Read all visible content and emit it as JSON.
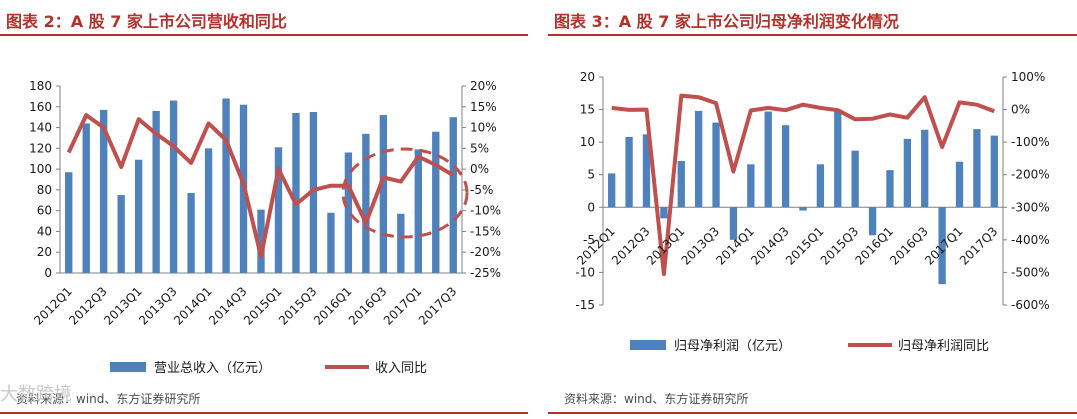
{
  "colors": {
    "bar": "#4f81bd",
    "line": "#c0504d",
    "title": "#b5312b",
    "highlight": "#c0504d"
  },
  "watermark": "大数跨境",
  "chart_data": [
    {
      "type": "bar",
      "title": "图表 2：A 股 7 家上市公司营收和同比",
      "categories": [
        "2012Q1",
        "2012Q2",
        "2012Q3",
        "2012Q4",
        "2013Q1",
        "2013Q2",
        "2013Q3",
        "2013Q4",
        "2014Q1",
        "2014Q2",
        "2014Q3",
        "2014Q4",
        "2015Q1",
        "2015Q2",
        "2015Q3",
        "2015Q4",
        "2016Q1",
        "2016Q2",
        "2016Q3",
        "2016Q4",
        "2017Q1",
        "2017Q2",
        "2017Q3"
      ],
      "x_tick_labels": [
        "2012Q1",
        "2012Q3",
        "2013Q1",
        "2013Q3",
        "2014Q1",
        "2014Q3",
        "2015Q1",
        "2015Q3",
        "2016Q1",
        "2016Q3",
        "2017Q1",
        "2017Q3"
      ],
      "series": [
        {
          "name": "营业总收入（亿元）",
          "type": "bar",
          "axis": "left",
          "values": [
            97,
            144,
            157,
            75,
            109,
            156,
            166,
            77,
            120,
            168,
            162,
            61,
            121,
            154,
            155,
            58,
            116,
            134,
            152,
            57,
            119,
            136,
            150
          ]
        },
        {
          "name": "收入同比",
          "type": "line",
          "axis": "right",
          "values": [
            4,
            13,
            10,
            0.5,
            12,
            8.5,
            5.5,
            1.5,
            11,
            7,
            -3.5,
            -21,
            0,
            -8.5,
            -5,
            -4,
            -4,
            -13,
            -2,
            -3,
            3,
            1,
            -1.5
          ]
        }
      ],
      "y_left": {
        "min": 0,
        "max": 180,
        "ticks": [
          0,
          20,
          40,
          60,
          80,
          100,
          120,
          140,
          160,
          180
        ]
      },
      "y_right": {
        "min": -25,
        "max": 20,
        "ticks": [
          "-25%",
          "-20%",
          "-15%",
          "-10%",
          "-5%",
          "0%",
          "5%",
          "10%",
          "15%",
          "20%"
        ]
      },
      "source": "资料来源：wind、东方证券研究所"
    },
    {
      "type": "bar",
      "title": "图表 3：A 股 7 家上市公司归母净利润变化情况",
      "categories": [
        "2012Q1",
        "2012Q2",
        "2012Q3",
        "2012Q4",
        "2013Q1",
        "2013Q2",
        "2013Q3",
        "2013Q4",
        "2014Q1",
        "2014Q2",
        "2014Q3",
        "2014Q4",
        "2015Q1",
        "2015Q2",
        "2015Q3",
        "2015Q4",
        "2016Q1",
        "2016Q2",
        "2016Q3",
        "2016Q4",
        "2017Q1",
        "2017Q2",
        "2017Q3"
      ],
      "x_tick_labels": [
        "2012Q1",
        "2012Q3",
        "2013Q1",
        "2013Q3",
        "2014Q1",
        "2014Q3",
        "2015Q1",
        "2015Q3",
        "2016Q1",
        "2016Q3",
        "2017Q1",
        "2017Q3"
      ],
      "series": [
        {
          "name": "归母净利润（亿元）",
          "type": "bar",
          "axis": "left",
          "values": [
            5.2,
            10.8,
            11.2,
            -1.7,
            7.1,
            14.8,
            13,
            -5,
            6.6,
            14.7,
            12.6,
            -0.5,
            6.6,
            14.7,
            8.7,
            -4.3,
            5.7,
            10.5,
            11.9,
            -11.8,
            7,
            12,
            11
          ]
        },
        {
          "name": "归母净利润同比",
          "type": "line",
          "axis": "right",
          "values": [
            5,
            -1,
            0,
            -505,
            43,
            38,
            20,
            -190,
            -3,
            5,
            -2,
            15,
            5,
            -2,
            -30,
            -28,
            -15,
            -25,
            38,
            -115,
            22,
            15,
            -5
          ]
        }
      ],
      "y_left": {
        "min": -15,
        "max": 20,
        "ticks": [
          -15,
          -10,
          -5,
          0,
          5,
          10,
          15,
          20
        ]
      },
      "y_right": {
        "min": -600,
        "max": 100,
        "ticks": [
          "-600%",
          "-500%",
          "-400%",
          "-300%",
          "-200%",
          "-100%",
          "0%",
          "100%"
        ]
      },
      "source": "资料来源：wind、东方证券研究所"
    }
  ]
}
